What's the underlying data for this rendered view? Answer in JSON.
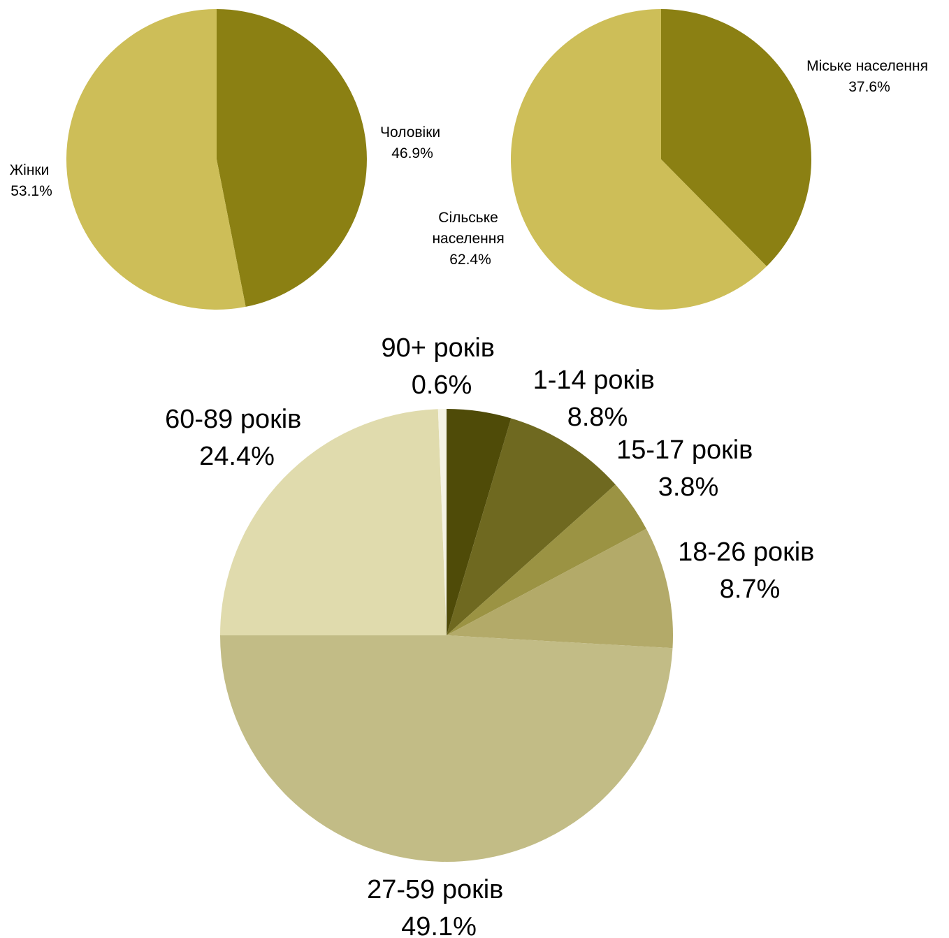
{
  "chart_data": [
    {
      "type": "pie",
      "start_angle": "12 o'clock, clockwise",
      "slices": [
        {
          "label": "Чоловіки",
          "percent_label": "46.9%",
          "value": 46.9,
          "color": "#8B8013"
        },
        {
          "label": "Жінки",
          "percent_label": "53.1%",
          "value": 53.1,
          "color": "#CDBE58"
        }
      ]
    },
    {
      "type": "pie",
      "start_angle": "12 o'clock, clockwise",
      "slices": [
        {
          "label": "Міське населення",
          "percent_label": "37.6%",
          "value": 37.6,
          "color": "#8B8013"
        },
        {
          "label": "Сільське населення",
          "label_lines": [
            "Сільське",
            "населення"
          ],
          "percent_label": "62.4%",
          "value": 62.4,
          "color": "#CDBE58"
        }
      ]
    },
    {
      "type": "pie",
      "start_angle": "12 o'clock, clockwise",
      "slices": [
        {
          "label": "1-14 років",
          "percent_label": "8.8%",
          "value": 8.8,
          "color": "#6F6920"
        },
        {
          "label": "15-17 років",
          "percent_label": "3.8%",
          "value": 3.8,
          "color": "#9B9343"
        },
        {
          "label": "18-26 років",
          "percent_label": "8.7%",
          "value": 8.7,
          "color": "#B3AA69"
        },
        {
          "label": "27-59 років",
          "percent_label": "49.1%",
          "value": 49.1,
          "color": "#C2BC86"
        },
        {
          "label": "60-89 років",
          "percent_label": "24.4%",
          "value": 24.4,
          "color": "#E0DBAD"
        },
        {
          "label": "90+ років",
          "percent_label": "0.6%",
          "value": 0.6,
          "color": "#F5F3E4"
        }
      ],
      "unlabeled_slice": {
        "value": 4.6,
        "color": "#4F4B08"
      }
    }
  ]
}
